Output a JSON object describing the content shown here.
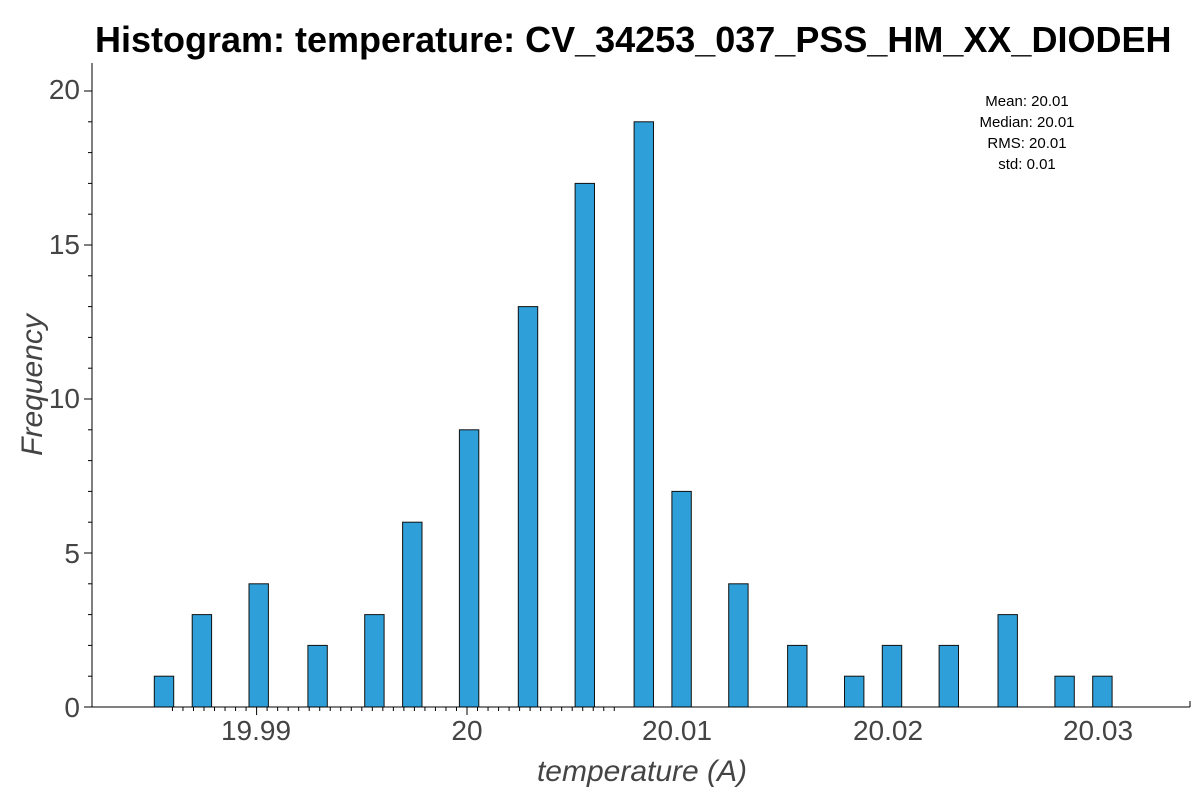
{
  "chart_data": {
    "type": "bar",
    "title": "Histogram: temperature: CV_34253_037_PSS_HM_XX_DIODEH",
    "xlabel": "temperature (A)",
    "ylabel": "Frequency",
    "xlim": [
      19.9839,
      20.0349
    ],
    "ylim": [
      0,
      20.8
    ],
    "x_ticks": [
      19.99,
      20.0,
      20.01,
      20.02,
      20.03
    ],
    "x_tick_labels": [
      "19.99",
      "20",
      "20.01",
      "20.02",
      "20.03"
    ],
    "y_ticks": [
      0,
      5,
      10,
      15,
      20
    ],
    "y_tick_labels": [
      "0",
      "5",
      "10",
      "15",
      "20"
    ],
    "bin_width": 0.00092,
    "bins": [
      {
        "x": 19.9856,
        "count": 1
      },
      {
        "x": 19.9874,
        "count": 3
      },
      {
        "x": 19.9901,
        "count": 4
      },
      {
        "x": 19.9929,
        "count": 2
      },
      {
        "x": 19.9956,
        "count": 3
      },
      {
        "x": 19.9974,
        "count": 6
      },
      {
        "x": 20.0001,
        "count": 9
      },
      {
        "x": 20.0029,
        "count": 13
      },
      {
        "x": 20.0056,
        "count": 17
      },
      {
        "x": 20.0084,
        "count": 19
      },
      {
        "x": 20.0102,
        "count": 7
      },
      {
        "x": 20.0129,
        "count": 4
      },
      {
        "x": 20.0157,
        "count": 2
      },
      {
        "x": 20.0184,
        "count": 1
      },
      {
        "x": 20.0202,
        "count": 2
      },
      {
        "x": 20.0229,
        "count": 2
      },
      {
        "x": 20.0257,
        "count": 3
      },
      {
        "x": 20.0284,
        "count": 1
      },
      {
        "x": 20.0302,
        "count": 1
      }
    ],
    "grid": false,
    "stats": {
      "mean": "Mean: 20.01",
      "median": "Median: 20.01",
      "rms": "RMS: 20.01",
      "std": "std: 0.01"
    },
    "bar_color": "#2e9fd8"
  }
}
